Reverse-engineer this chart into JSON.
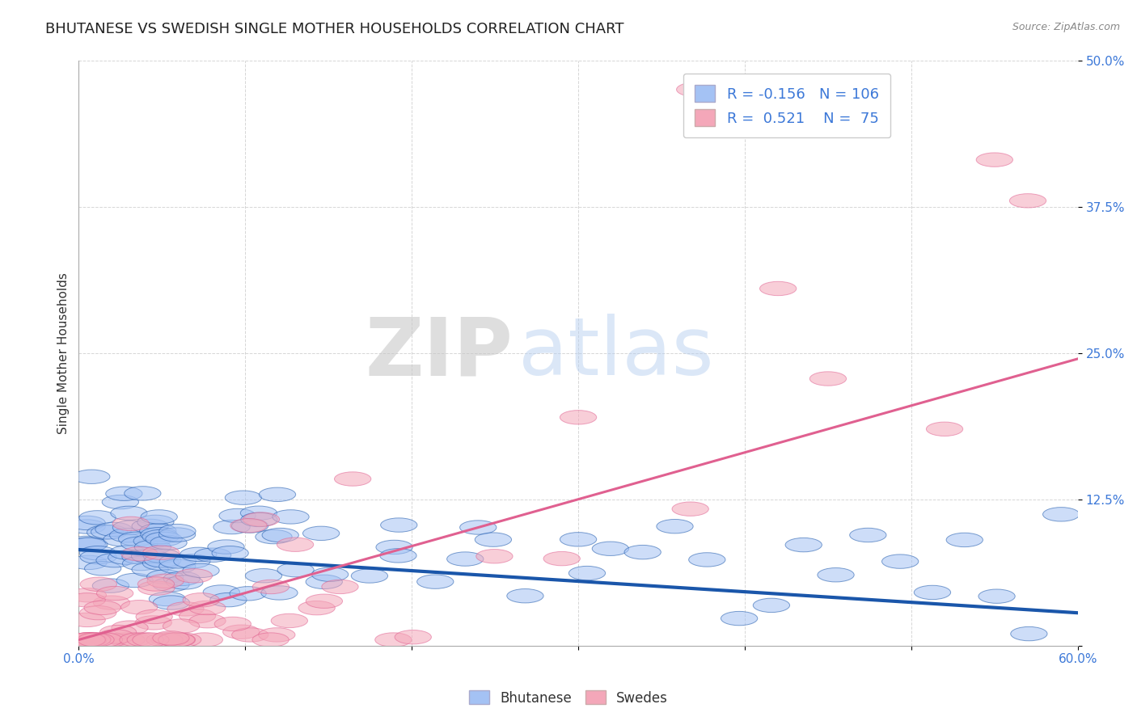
{
  "title": "BHUTANESE VS SWEDISH SINGLE MOTHER HOUSEHOLDS CORRELATION CHART",
  "source": "Source: ZipAtlas.com",
  "ylabel": "Single Mother Households",
  "xlim": [
    0.0,
    0.6
  ],
  "ylim": [
    0.0,
    0.5
  ],
  "xticks": [
    0.0,
    0.1,
    0.2,
    0.3,
    0.4,
    0.5,
    0.6
  ],
  "xticklabels": [
    "0.0%",
    "",
    "",
    "",
    "",
    "",
    "60.0%"
  ],
  "yticks": [
    0.0,
    0.125,
    0.25,
    0.375,
    0.5
  ],
  "yticklabels": [
    "",
    "12.5%",
    "25.0%",
    "37.5%",
    "50.0%"
  ],
  "blue_R": -0.156,
  "blue_N": 106,
  "pink_R": 0.521,
  "pink_N": 75,
  "blue_color": "#a4c2f4",
  "pink_color": "#f4a7b9",
  "blue_line_color": "#1a56aa",
  "pink_line_color": "#e06090",
  "legend_label1": "Bhutanese",
  "legend_label2": "Swedes",
  "title_fontsize": 13,
  "axis_label_fontsize": 11,
  "tick_fontsize": 11,
  "blue_trend_x0": 0.0,
  "blue_trend_x1": 0.6,
  "blue_trend_y0": 0.082,
  "blue_trend_y1": 0.028,
  "pink_trend_x0": 0.0,
  "pink_trend_x1": 0.6,
  "pink_trend_y0": 0.005,
  "pink_trend_y1": 0.245
}
